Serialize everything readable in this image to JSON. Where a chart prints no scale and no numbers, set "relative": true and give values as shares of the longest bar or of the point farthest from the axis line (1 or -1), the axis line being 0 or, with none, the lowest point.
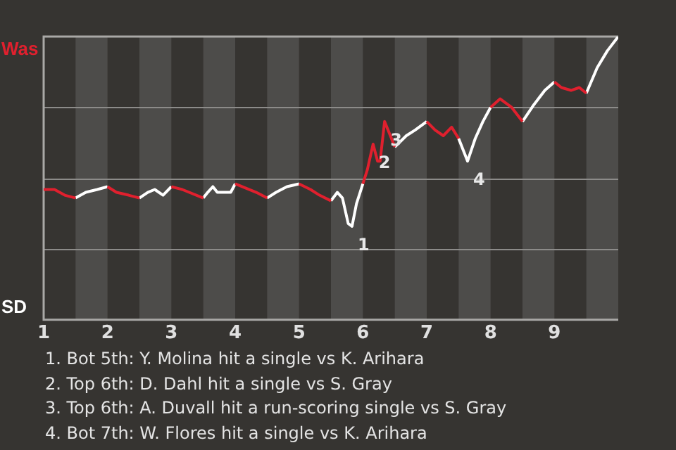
{
  "chart_data": {
    "type": "line",
    "relative": true,
    "x": [
      1,
      1.17,
      1.33,
      1.5,
      1.66,
      1.84,
      2,
      2.14,
      2.33,
      2.5,
      2.63,
      2.74,
      2.87,
      3,
      3.17,
      3.5,
      3.57,
      3.65,
      3.72,
      3.93,
      4,
      4.33,
      4.5,
      4.64,
      4.81,
      5,
      5.18,
      5.32,
      5.5,
      5.6,
      5.68,
      5.77,
      5.83,
      5.9,
      6,
      6.07,
      6.16,
      6.23,
      6.27,
      6.34,
      6.43,
      6.5,
      6.68,
      6.82,
      7,
      7.13,
      7.26,
      7.39,
      7.5,
      7.64,
      7.76,
      7.88,
      8,
      8.15,
      8.33,
      8.5,
      8.68,
      8.85,
      9,
      9.11,
      9.26,
      9.39,
      9.5,
      9.67,
      9.83,
      10
    ],
    "xlim": [
      1,
      10
    ],
    "xticks": [
      1,
      2,
      3,
      4,
      5,
      6,
      7,
      8,
      9
    ],
    "series": [
      {
        "name": "Was",
        "color": "#e0202e",
        "values": [
          0.46,
          0.46,
          0.44,
          0.43,
          null,
          null,
          0.47,
          0.45,
          0.44,
          0.43,
          null,
          null,
          null,
          0.47,
          0.46,
          0.43,
          null,
          null,
          null,
          null,
          0.48,
          0.45,
          0.43,
          null,
          null,
          0.48,
          0.46,
          0.44,
          0.42,
          null,
          null,
          null,
          null,
          null,
          0.48,
          0.53,
          0.62,
          0.56,
          0.56,
          0.7,
          0.65,
          0.61,
          null,
          null,
          0.7,
          0.67,
          0.65,
          0.68,
          0.64,
          null,
          null,
          null,
          0.75,
          0.78,
          0.75,
          0.7,
          null,
          null,
          0.84,
          0.82,
          0.81,
          0.82,
          0.8,
          null,
          null,
          null
        ]
      },
      {
        "name": "SD",
        "color": "#ffffff",
        "values": [
          null,
          null,
          null,
          0.43,
          0.45,
          0.46,
          0.47,
          null,
          null,
          0.43,
          0.45,
          0.46,
          0.44,
          0.47,
          null,
          0.43,
          0.45,
          0.47,
          0.45,
          0.45,
          0.48,
          null,
          0.43,
          0.45,
          0.47,
          0.48,
          null,
          null,
          0.42,
          0.45,
          0.43,
          0.34,
          0.33,
          0.41,
          0.48,
          null,
          null,
          null,
          null,
          null,
          null,
          0.61,
          0.65,
          0.67,
          0.7,
          null,
          null,
          null,
          0.64,
          0.56,
          0.64,
          0.7,
          0.75,
          null,
          null,
          0.7,
          0.76,
          0.81,
          0.84,
          null,
          null,
          null,
          0.8,
          0.89,
          0.95,
          1
        ]
      }
    ],
    "bands": [
      {
        "axis": "x",
        "from": 1.5,
        "to": 2,
        "color": "#4d4c4a"
      },
      {
        "axis": "x",
        "from": 2.5,
        "to": 3,
        "color": "#4d4c4a"
      },
      {
        "axis": "x",
        "from": 3.5,
        "to": 4,
        "color": "#4d4c4a"
      },
      {
        "axis": "x",
        "from": 4.5,
        "to": 5,
        "color": "#4d4c4a"
      },
      {
        "axis": "x",
        "from": 5.5,
        "to": 6,
        "color": "#4d4c4a"
      },
      {
        "axis": "x",
        "from": 6.5,
        "to": 7,
        "color": "#4d4c4a"
      },
      {
        "axis": "x",
        "from": 7.5,
        "to": 8,
        "color": "#4d4c4a"
      },
      {
        "axis": "x",
        "from": 8.5,
        "to": 9,
        "color": "#4d4c4a"
      },
      {
        "axis": "x",
        "from": 9.5,
        "to": 10,
        "color": "#4d4c4a"
      }
    ],
    "ref_lines": [
      {
        "axis": "y",
        "value": 0.25,
        "color": "#8c8b89"
      },
      {
        "axis": "y",
        "value": 0.5,
        "color": "#8c8b89"
      },
      {
        "axis": "y",
        "value": 0.75,
        "color": "#8c8b89"
      }
    ],
    "annotations": [
      {
        "text": "1",
        "x": 5.83,
        "y": 0.33
      },
      {
        "text": "2",
        "x": 6.16,
        "y": 0.62
      },
      {
        "text": "3",
        "x": 6.34,
        "y": 0.7
      },
      {
        "text": "4",
        "x": 7.64,
        "y": 0.56
      },
      "1. Bot 5th: Y. Molina hit a single vs K. Arihara",
      "2. Top 6th: D. Dahl hit a single vs S. Gray",
      "3. Top 6th: A. Duvall hit a run-scoring single vs S. Gray",
      "4. Bot 7th: W. Flores hit a single vs K. Arihara"
    ]
  }
}
